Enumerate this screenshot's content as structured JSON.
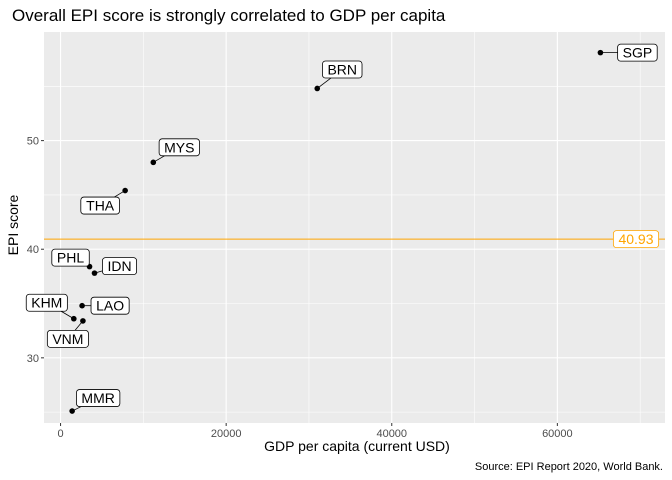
{
  "chart_data": {
    "type": "scatter",
    "title": "Overall EPI score is strongly correlated to GDP per capita",
    "xlabel": "GDP per capita (current USD)",
    "ylabel": "EPI score",
    "caption": "Source: EPI Report 2020, World Bank.",
    "xlim": [
      -2000,
      73000
    ],
    "ylim": [
      24,
      60
    ],
    "xticks": [
      0,
      20000,
      40000,
      60000
    ],
    "xtick_labels": [
      "0",
      "20000",
      "40000",
      "60000"
    ],
    "yticks": [
      30,
      40,
      50
    ],
    "ytick_labels": [
      "30",
      "40",
      "50"
    ],
    "grid": true,
    "points": [
      {
        "label": "SGP",
        "x": 65200,
        "y": 58.1
      },
      {
        "label": "BRN",
        "x": 31000,
        "y": 54.8
      },
      {
        "label": "MYS",
        "x": 11200,
        "y": 48.0
      },
      {
        "label": "THA",
        "x": 7800,
        "y": 45.4
      },
      {
        "label": "IDN",
        "x": 4100,
        "y": 37.8
      },
      {
        "label": "PHL",
        "x": 3500,
        "y": 38.4
      },
      {
        "label": "LAO",
        "x": 2600,
        "y": 34.8
      },
      {
        "label": "KHM",
        "x": 1600,
        "y": 33.6
      },
      {
        "label": "VNM",
        "x": 2700,
        "y": 33.4
      },
      {
        "label": "MMR",
        "x": 1400,
        "y": 25.1
      }
    ],
    "reference_line": {
      "y": 40.93,
      "label": "40.93",
      "color": "#FFA500"
    },
    "colors": {
      "panel": "#EBEBEB",
      "grid": "#FFFFFF",
      "point": "#000000"
    }
  }
}
